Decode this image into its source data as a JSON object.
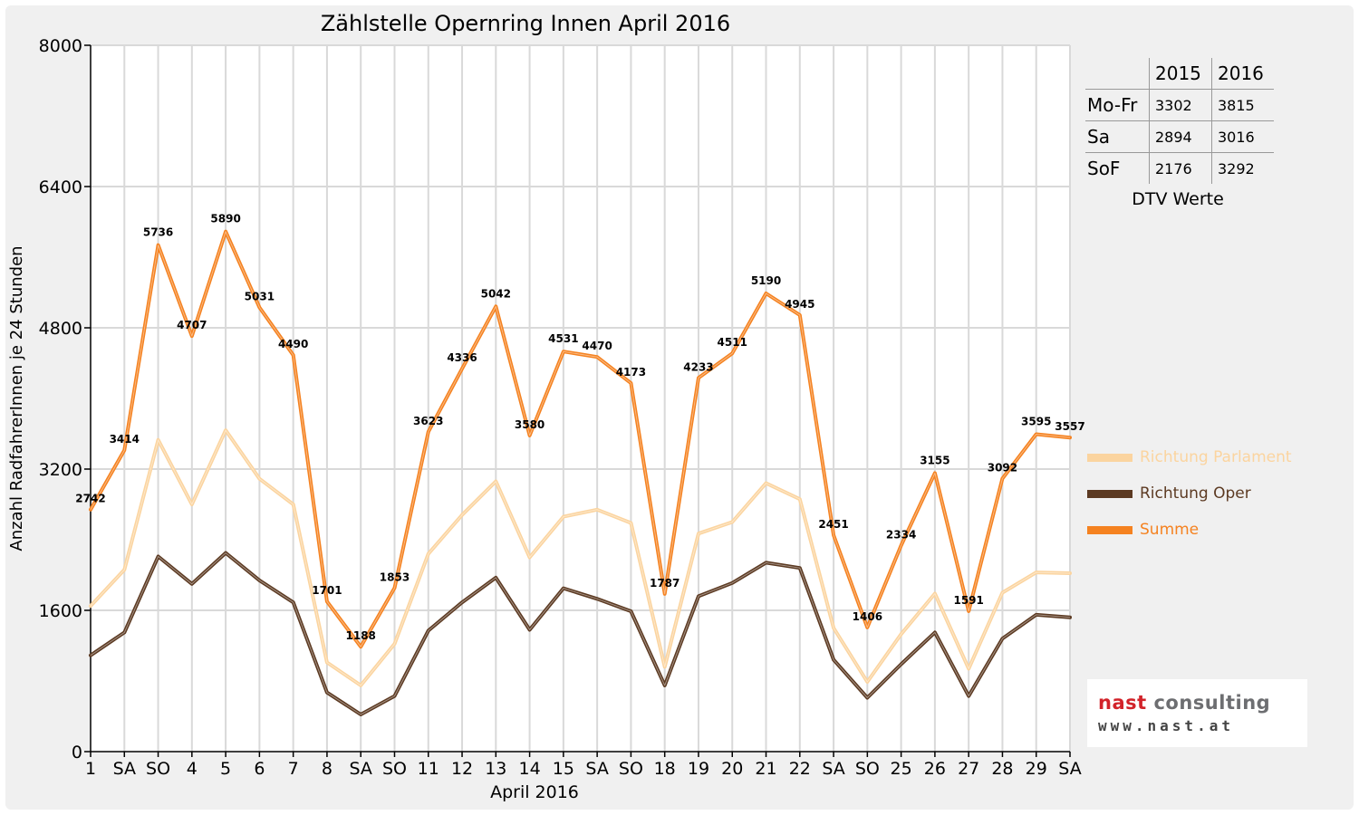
{
  "chart_data": {
    "type": "line",
    "title": "Zählstelle Opernring Innen April 2016",
    "xlabel": "April 2016",
    "ylabel": "Anzahl RadfahrerInnen je 24 Stunden",
    "ylim": [
      0,
      8000
    ],
    "yticks": [
      "0",
      "1600",
      "3200",
      "4800",
      "6400",
      "8000"
    ],
    "grid": true,
    "legend_position": "right",
    "categories": [
      "1",
      "SA",
      "SO",
      "4",
      "5",
      "6",
      "7",
      "8",
      "SA",
      "SO",
      "11",
      "12",
      "13",
      "14",
      "15",
      "SA",
      "SO",
      "18",
      "19",
      "20",
      "21",
      "22",
      "SA",
      "SO",
      "25",
      "26",
      "27",
      "28",
      "29",
      "SA"
    ],
    "highlighted_categories": [
      "SO"
    ],
    "highlight_color": "#ff0000",
    "series": [
      {
        "name": "Richtung Parlament",
        "color": "#fbd49f",
        "values": [
          1650,
          2060,
          3530,
          2800,
          3640,
          3090,
          2800,
          1010,
          750,
          1220,
          2240,
          2680,
          3060,
          2200,
          2660,
          2740,
          2590,
          960,
          2470,
          2600,
          3040,
          2860,
          1400,
          790,
          1330,
          1790,
          940,
          1800,
          2030,
          2020
        ]
      },
      {
        "name": "Richtung Oper",
        "color": "#5c3a22",
        "values": [
          1090,
          1350,
          2210,
          1900,
          2250,
          1940,
          1690,
          670,
          420,
          630,
          1370,
          1690,
          1970,
          1380,
          1850,
          1730,
          1590,
          750,
          1760,
          1910,
          2140,
          2080,
          1040,
          610,
          990,
          1350,
          630,
          1280,
          1550,
          1520
        ]
      },
      {
        "name": "Summe",
        "color": "#f58220",
        "values": [
          2742,
          3414,
          5736,
          4707,
          5890,
          5031,
          4490,
          1701,
          1188,
          1853,
          3623,
          4336,
          5042,
          3580,
          4531,
          4470,
          4173,
          1787,
          4233,
          4511,
          5190,
          4945,
          2451,
          1406,
          2334,
          3155,
          1591,
          3092,
          3595,
          3557
        ],
        "labels": [
          "2742",
          "3414",
          "5736",
          "4707",
          "5890",
          "5031",
          "4490",
          "1701",
          "1188",
          "1853",
          "3623",
          "4336",
          "5042",
          "3580",
          "4531",
          "4470",
          "4173",
          "1787",
          "4233",
          "4511",
          "5190",
          "4945",
          "2451",
          "1406",
          "2334",
          "3155",
          "1591",
          "3092",
          "3595",
          "3557"
        ]
      }
    ]
  },
  "dtv_table": {
    "headers": [
      "2015",
      "2016"
    ],
    "rows": [
      {
        "label": "Mo-Fr",
        "v2015": "3302",
        "v2016": "3815"
      },
      {
        "label": "Sa",
        "v2015": "2894",
        "v2016": "3016"
      },
      {
        "label": "SoF",
        "v2015": "2176",
        "v2016": "3292"
      }
    ],
    "caption": "DTV Werte"
  },
  "logo": {
    "part1": "nast",
    "part2": "consulting",
    "url_text": "www.nast.at",
    "color1": "#d2232a",
    "color2": "#6d6e71"
  }
}
